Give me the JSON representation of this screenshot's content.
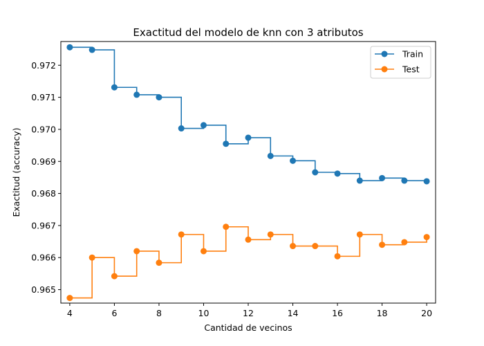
{
  "chart_data": {
    "type": "line",
    "title": "Exactitud del modelo de knn con 3 atributos",
    "xlabel": "Cantidad de vecinos",
    "ylabel": "Exactitud (accuracy)",
    "xlim": [
      3.6,
      20.4
    ],
    "ylim": [
      0.96458,
      0.97274
    ],
    "xticks": [
      4,
      6,
      8,
      10,
      12,
      14,
      16,
      18,
      20
    ],
    "xtick_labels": [
      "4",
      "6",
      "8",
      "10",
      "12",
      "14",
      "16",
      "18",
      "20"
    ],
    "yticks": [
      0.965,
      0.966,
      0.967,
      0.968,
      0.969,
      0.97,
      0.971,
      0.972
    ],
    "ytick_labels": [
      "0.965",
      "0.966",
      "0.967",
      "0.968",
      "0.969",
      "0.970",
      "0.971",
      "0.972"
    ],
    "step_style": "post",
    "legend_position": "top-right",
    "grid": false,
    "x": [
      4,
      5,
      6,
      7,
      8,
      9,
      10,
      11,
      12,
      13,
      14,
      15,
      16,
      17,
      18,
      19,
      20
    ],
    "series": [
      {
        "name": "Train",
        "color": "#1f77b4",
        "values": [
          0.97256,
          0.97248,
          0.97131,
          0.97108,
          0.971,
          0.97003,
          0.97013,
          0.96955,
          0.96974,
          0.96917,
          0.96902,
          0.96866,
          0.96862,
          0.9684,
          0.96848,
          0.9684,
          0.96838
        ]
      },
      {
        "name": "Test",
        "color": "#ff7f0e",
        "values": [
          0.96474,
          0.966,
          0.96542,
          0.9662,
          0.96584,
          0.96672,
          0.9662,
          0.96696,
          0.96656,
          0.96672,
          0.96636,
          0.96636,
          0.96604,
          0.96672,
          0.9664,
          0.96648,
          0.96664
        ]
      }
    ]
  }
}
